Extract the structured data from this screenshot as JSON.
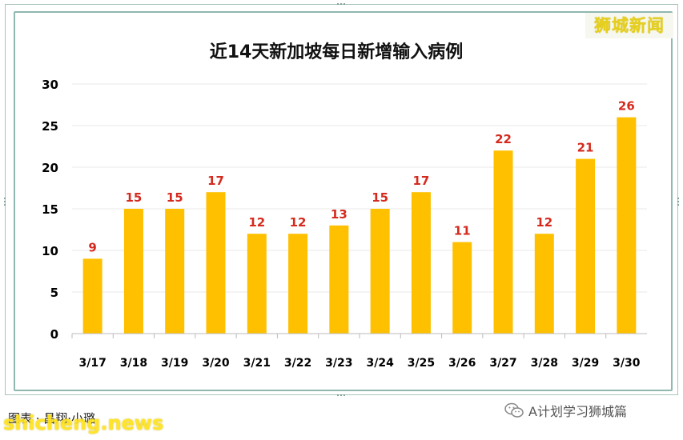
{
  "brand": "狮城新闻",
  "credit": "图表 · 昌翔·小璐",
  "watermark": "shicheng.news",
  "wechat": {
    "label": "A计划学习狮城篇",
    "icon": "wechat-icon"
  },
  "colors": {
    "bar": "#FFC000",
    "label": "#D42A1E",
    "grid": "#e8e8e8"
  },
  "chart_data": {
    "type": "bar",
    "title": "近14天新加坡每日新增输入病例",
    "xlabel": "",
    "ylabel": "",
    "ylim": [
      0,
      30
    ],
    "yticks": [
      0,
      5,
      10,
      15,
      20,
      25,
      30
    ],
    "grid": true,
    "categories": [
      "3/17",
      "3/18",
      "3/19",
      "3/20",
      "3/21",
      "3/22",
      "3/23",
      "3/24",
      "3/25",
      "3/26",
      "3/27",
      "3/28",
      "3/29",
      "3/30"
    ],
    "values": [
      9,
      15,
      15,
      17,
      12,
      12,
      13,
      15,
      17,
      11,
      22,
      12,
      21,
      26
    ]
  }
}
